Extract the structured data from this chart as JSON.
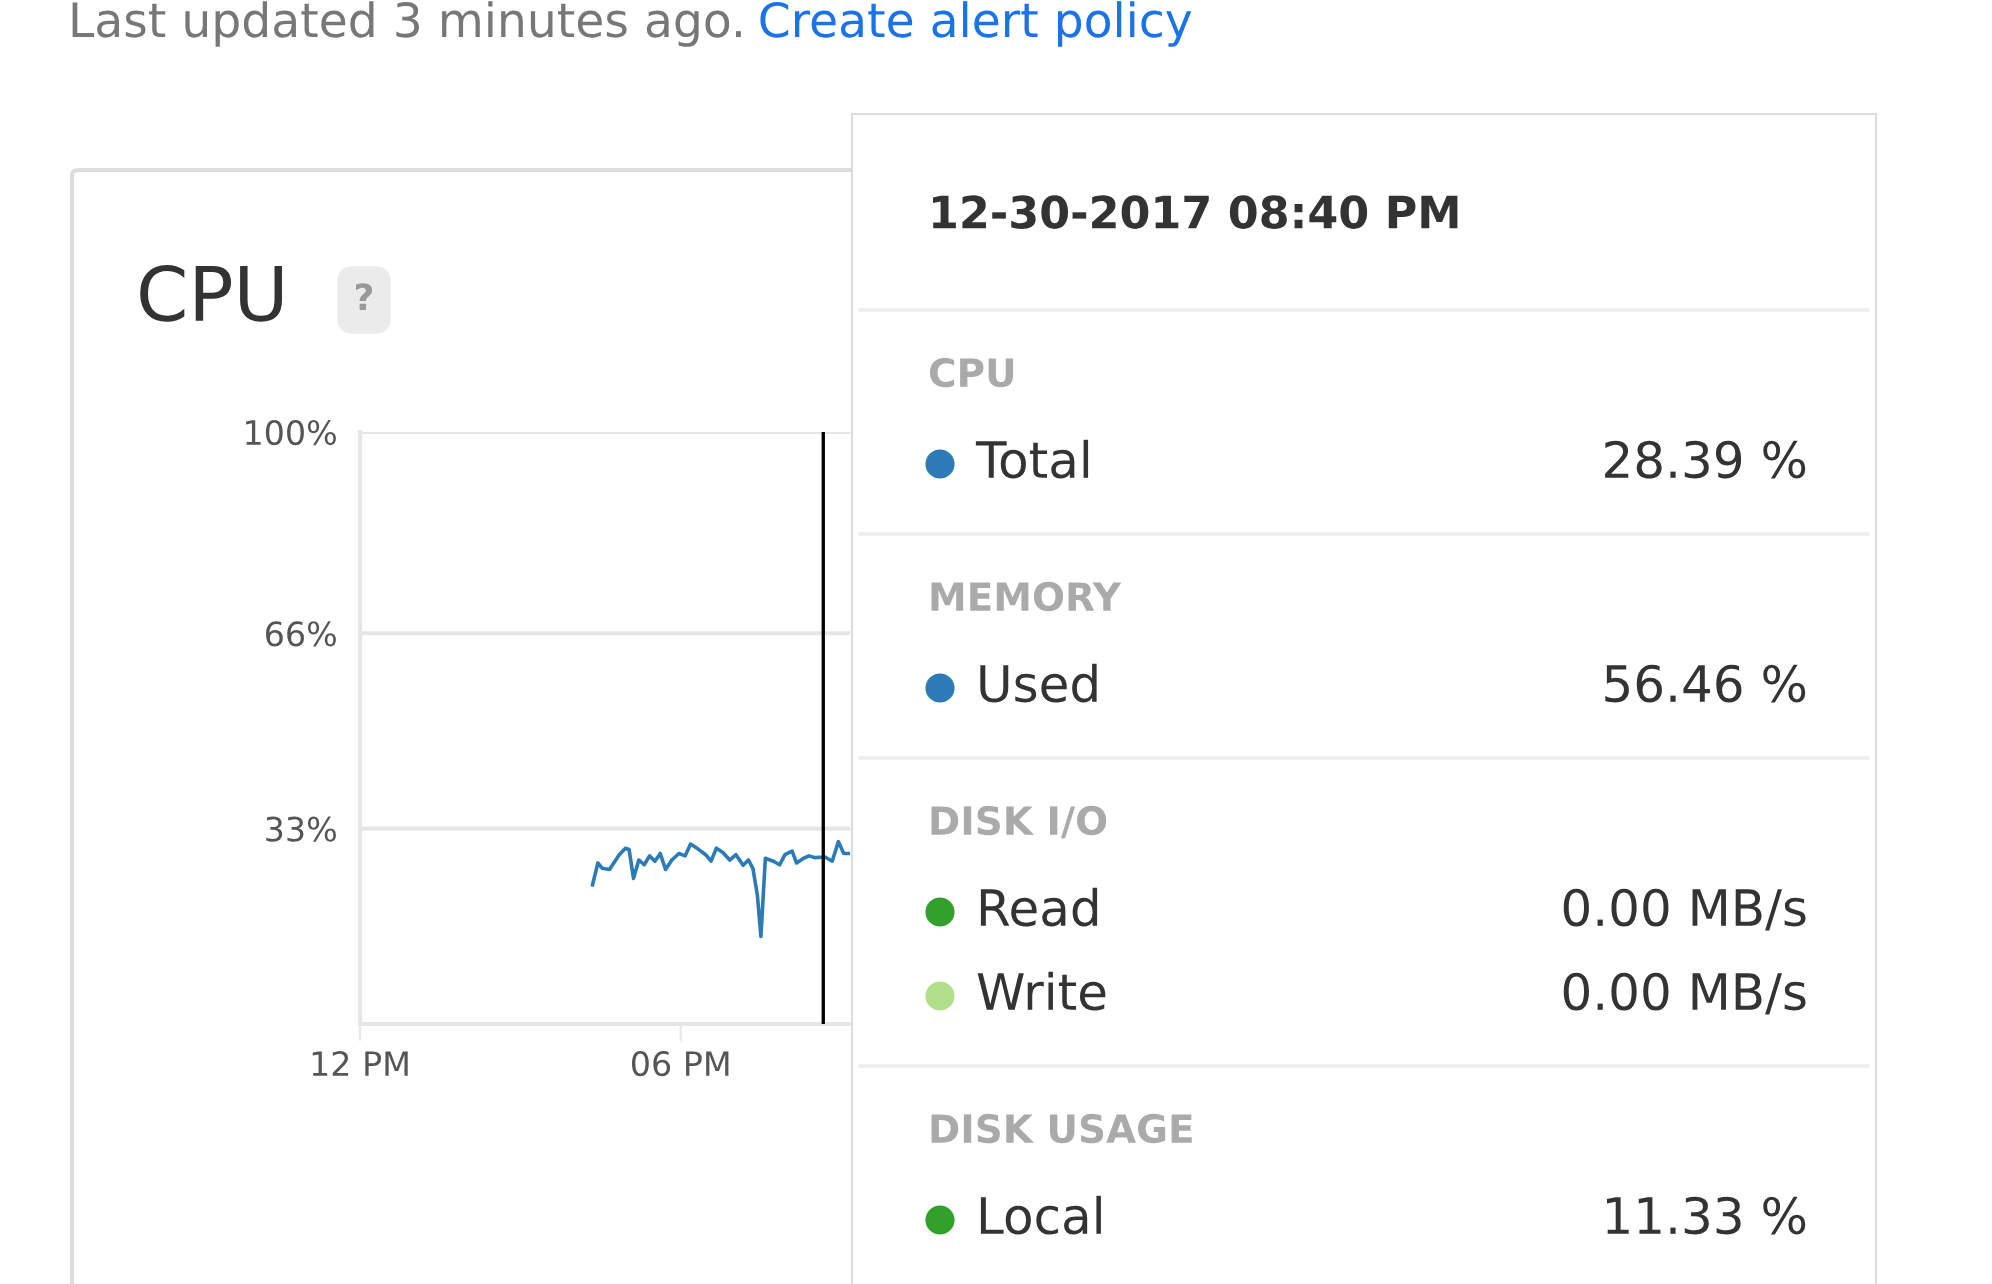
{
  "chart_data": [
    {
      "type": "line",
      "title": "CPU",
      "annotations": [
        "Last updated 3 minutes ago.",
        "Create alert policy",
        "?"
      ],
      "x": [
        "2017-12-30T16:21",
        "2017-12-30T16:27",
        "2017-12-30T16:32",
        "2017-12-30T16:40",
        "2017-12-30T16:51",
        "2017-12-30T16:58",
        "2017-12-30T17:02",
        "2017-12-30T17:07",
        "2017-12-30T17:13",
        "2017-12-30T17:19",
        "2017-12-30T17:25",
        "2017-12-30T17:31",
        "2017-12-30T17:37",
        "2017-12-30T17:43",
        "2017-12-30T17:50",
        "2017-12-30T17:58",
        "2017-12-30T18:05",
        "2017-12-30T18:11",
        "2017-12-30T18:20",
        "2017-12-30T18:28",
        "2017-12-30T18:34",
        "2017-12-30T18:40",
        "2017-12-30T18:47",
        "2017-12-30T18:55",
        "2017-12-30T19:02",
        "2017-12-30T19:10",
        "2017-12-30T19:16",
        "2017-12-30T19:21",
        "2017-12-30T19:26",
        "2017-12-30T19:30",
        "2017-12-30T19:35",
        "2017-12-30T19:44",
        "2017-12-30T19:51",
        "2017-12-30T19:57",
        "2017-12-30T20:05",
        "2017-12-30T20:10",
        "2017-12-30T20:18",
        "2017-12-30T20:24",
        "2017-12-30T20:31",
        "2017-12-30T20:42",
        "2017-12-30T20:50",
        "2017-12-30T20:57",
        "2017-12-30T21:03",
        "2017-12-30T21:08"
      ],
      "series": [
        {
          "color": "#2c7bb6",
          "values": [
            23.5,
            27.2,
            26.3,
            26.1,
            28.6,
            29.7,
            29.5,
            24.6,
            27.7,
            26.9,
            28.4,
            27.5,
            28.8,
            26.1,
            27.7,
            28.8,
            28.4,
            30.4,
            29.5,
            28.6,
            27.5,
            29.7,
            29.0,
            27.7,
            28.6,
            26.8,
            27.7,
            26.3,
            21.8,
            14.8,
            28.0,
            27.5,
            26.9,
            28.6,
            29.2,
            27.2,
            28.0,
            28.4,
            28.1,
            28.2,
            27.5,
            30.8,
            28.8,
            28.8
          ]
        }
      ],
      "xlim": [
        "2017-12-30T12:00",
        "2017-12-30T21:10"
      ],
      "xticks": [
        {
          "value": "2017-12-30T12:00",
          "label": "12 PM"
        },
        {
          "value": "2017-12-30T18:00",
          "label": "06 PM"
        }
      ],
      "ylim": [
        0,
        100
      ],
      "yticks": [
        {
          "value": 33,
          "label": "33%"
        },
        {
          "value": 66,
          "label": "66%"
        },
        {
          "value": 100,
          "label": "100%"
        }
      ],
      "grid": "y",
      "marker": "none",
      "line_style": "solid",
      "ref_lines": [
        {
          "axis": "x",
          "value": "2017-12-30T20:40",
          "color": "#000000"
        }
      ]
    },
    {
      "type": "other",
      "title": "12-30-2017 08:40 PM",
      "annotations": [
        "CPU",
        "MEMORY",
        "DISK I/O",
        "DISK USAGE",
        "28.39 %",
        "56.46 %",
        "0.00 MB/s",
        "0.00 MB/s",
        "11.33 %"
      ],
      "series": [
        {
          "name": "Total",
          "color": "#2c7bb6"
        },
        {
          "name": "Used",
          "color": "#2c7bb6"
        },
        {
          "name": "Read",
          "color": "#33a02c"
        },
        {
          "name": "Write",
          "color": "#b2df8a"
        },
        {
          "name": "Local",
          "color": "#33a02c"
        }
      ]
    }
  ]
}
